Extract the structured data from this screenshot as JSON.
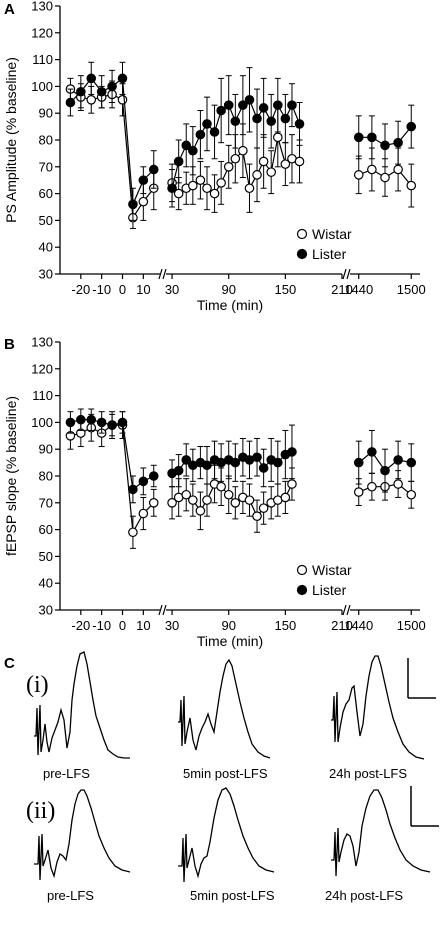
{
  "panels": {
    "A": "A",
    "B": "B",
    "C": "C"
  },
  "chart_data": [
    {
      "type": "scatter",
      "panel": "A",
      "ylabel": "PS Amplitude (% baseline)",
      "xlabel": "Time (min)",
      "ylim": [
        30,
        130
      ],
      "yticks": [
        "30",
        "40",
        "50",
        "60",
        "70",
        "80",
        "90",
        "100",
        "110",
        "120",
        "130"
      ],
      "xticks": [
        "-20",
        "-10",
        "0",
        "10",
        "30",
        "90",
        "150",
        "210",
        "1440",
        "1500"
      ],
      "legend_position": "lower-right",
      "series": [
        {
          "name": "Wistar",
          "marker": "open-circle",
          "segments": [
            [
              [
                -25,
                99,
                4
              ],
              [
                -20,
                96,
                5
              ],
              [
                -15,
                95,
                5
              ],
              [
                -10,
                96,
                4
              ],
              [
                -5,
                97,
                5
              ],
              [
                0,
                95,
                6
              ],
              [
                5,
                51,
                4
              ],
              [
                10,
                57,
                7
              ],
              [
                15,
                62,
                8
              ]
            ],
            [
              [
                30,
                64,
                7
              ],
              [
                37,
                60,
                6
              ],
              [
                45,
                62,
                6
              ],
              [
                52,
                63,
                7
              ],
              [
                60,
                65,
                7
              ],
              [
                67,
                62,
                8
              ],
              [
                75,
                60,
                7
              ],
              [
                82,
                64,
                8
              ],
              [
                90,
                70,
                8
              ],
              [
                97,
                73,
                9
              ],
              [
                105,
                76,
                10
              ],
              [
                112,
                62,
                9
              ],
              [
                120,
                67,
                10
              ],
              [
                127,
                72,
                10
              ],
              [
                135,
                68,
                8
              ],
              [
                142,
                81,
                11
              ],
              [
                150,
                71,
                8
              ],
              [
                157,
                73,
                9
              ],
              [
                165,
                72,
                8
              ]
            ],
            [
              [
                1440,
                67,
                7
              ],
              [
                1455,
                69,
                8
              ],
              [
                1470,
                66,
                7
              ],
              [
                1485,
                69,
                8
              ],
              [
                1500,
                63,
                8
              ]
            ]
          ]
        },
        {
          "name": "Lister",
          "marker": "filled-circle",
          "segments": [
            [
              [
                -25,
                94,
                5
              ],
              [
                -20,
                98,
                6
              ],
              [
                -15,
                103,
                6
              ],
              [
                -10,
                98,
                6
              ],
              [
                -5,
                100,
                6
              ],
              [
                0,
                103,
                6
              ],
              [
                5,
                56,
                6
              ],
              [
                10,
                65,
                5
              ],
              [
                15,
                69,
                7
              ]
            ],
            [
              [
                30,
                62,
                7
              ],
              [
                37,
                72,
                8
              ],
              [
                45,
                78,
                8
              ],
              [
                52,
                76,
                9
              ],
              [
                60,
                82,
                9
              ],
              [
                67,
                86,
                10
              ],
              [
                75,
                83,
                10
              ],
              [
                82,
                91,
                12
              ],
              [
                90,
                93,
                11
              ],
              [
                97,
                87,
                10
              ],
              [
                105,
                93,
                11
              ],
              [
                112,
                95,
                12
              ],
              [
                120,
                88,
                11
              ],
              [
                127,
                92,
                11
              ],
              [
                135,
                87,
                10
              ],
              [
                142,
                93,
                10
              ],
              [
                150,
                88,
                9
              ],
              [
                157,
                93,
                8
              ],
              [
                165,
                86,
                8
              ]
            ],
            [
              [
                1440,
                81,
                8
              ],
              [
                1455,
                81,
                8
              ],
              [
                1470,
                78,
                8
              ],
              [
                1485,
                79,
                8
              ],
              [
                1500,
                85,
                8
              ]
            ]
          ]
        }
      ]
    },
    {
      "type": "scatter",
      "panel": "B",
      "ylabel": "fEPSP slope (% baseline)",
      "xlabel": "Time (min)",
      "ylim": [
        30,
        130
      ],
      "yticks": [
        "30",
        "40",
        "50",
        "60",
        "70",
        "80",
        "90",
        "100",
        "110",
        "120",
        "130"
      ],
      "xticks": [
        "-20",
        "-10",
        "0",
        "10",
        "30",
        "90",
        "150",
        "210",
        "1440",
        "1500"
      ],
      "legend_position": "lower-right",
      "series": [
        {
          "name": "Wistar",
          "marker": "open-circle",
          "segments": [
            [
              [
                -25,
                95,
                5
              ],
              [
                -20,
                96,
                5
              ],
              [
                -15,
                98,
                5
              ],
              [
                -10,
                96,
                5
              ],
              [
                -5,
                99,
                5
              ],
              [
                0,
                99,
                5
              ],
              [
                5,
                59,
                6
              ],
              [
                10,
                66,
                6
              ],
              [
                15,
                70,
                5
              ]
            ],
            [
              [
                30,
                70,
                6
              ],
              [
                37,
                72,
                7
              ],
              [
                45,
                73,
                6
              ],
              [
                52,
                71,
                6
              ],
              [
                60,
                67,
                7
              ],
              [
                67,
                71,
                6
              ],
              [
                75,
                77,
                7
              ],
              [
                82,
                76,
                7
              ],
              [
                90,
                73,
                7
              ],
              [
                97,
                70,
                6
              ],
              [
                105,
                72,
                6
              ],
              [
                112,
                71,
                6
              ],
              [
                120,
                65,
                6
              ],
              [
                127,
                68,
                6
              ],
              [
                135,
                70,
                6
              ],
              [
                142,
                71,
                6
              ],
              [
                150,
                72,
                6
              ],
              [
                157,
                77,
                6
              ]
            ],
            [
              [
                1440,
                74,
                5
              ],
              [
                1455,
                76,
                5
              ],
              [
                1470,
                76,
                5
              ],
              [
                1485,
                77,
                5
              ],
              [
                1500,
                73,
                5
              ]
            ]
          ]
        },
        {
          "name": "Lister",
          "marker": "filled-circle",
          "segments": [
            [
              [
                -25,
                100,
                4
              ],
              [
                -20,
                101,
                4
              ],
              [
                -15,
                101,
                4
              ],
              [
                -10,
                100,
                4
              ],
              [
                -5,
                99,
                4
              ],
              [
                0,
                100,
                4
              ],
              [
                5,
                75,
                5
              ],
              [
                10,
                78,
                5
              ],
              [
                15,
                80,
                4
              ]
            ],
            [
              [
                30,
                81,
                5
              ],
              [
                37,
                82,
                6
              ],
              [
                45,
                86,
                6
              ],
              [
                52,
                84,
                6
              ],
              [
                60,
                85,
                6
              ],
              [
                67,
                84,
                7
              ],
              [
                75,
                86,
                7
              ],
              [
                82,
                85,
                7
              ],
              [
                90,
                86,
                7
              ],
              [
                97,
                85,
                7
              ],
              [
                105,
                87,
                7
              ],
              [
                112,
                86,
                7
              ],
              [
                120,
                87,
                7
              ],
              [
                127,
                83,
                7
              ],
              [
                135,
                86,
                8
              ],
              [
                142,
                85,
                8
              ],
              [
                150,
                88,
                9
              ],
              [
                157,
                89,
                10
              ]
            ],
            [
              [
                1440,
                85,
                8
              ],
              [
                1455,
                89,
                8
              ],
              [
                1470,
                82,
                8
              ],
              [
                1485,
                86,
                7
              ],
              [
                1500,
                85,
                7
              ]
            ]
          ]
        }
      ]
    }
  ],
  "traces": {
    "row_labels": [
      "(i)",
      "(ii)"
    ],
    "condition_labels": [
      "pre-LFS",
      "5min post-LFS",
      "24h post-LFS"
    ]
  }
}
